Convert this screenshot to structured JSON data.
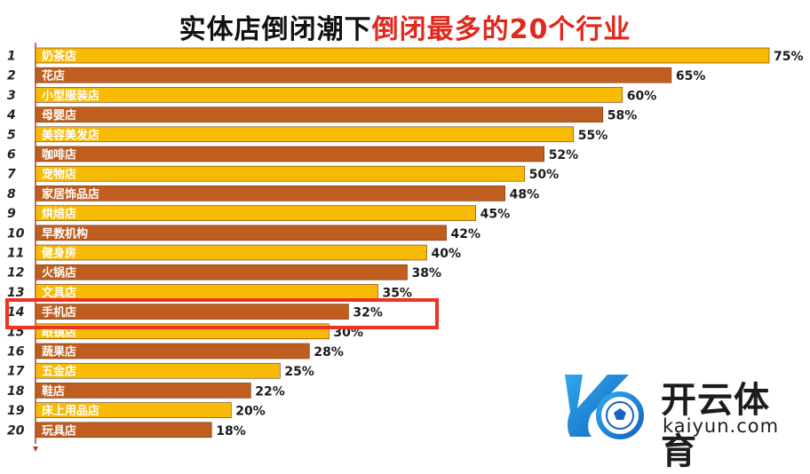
{
  "title": {
    "main": "实体店倒闭潮下",
    "highlight": "倒闭最多的20个行业"
  },
  "colors": {
    "bar_odd": "#f8bb05",
    "bar_even": "#c05e1f",
    "highlight_box": "#ee3322",
    "title_highlight": "#e0281c",
    "axis": "#c0392b"
  },
  "chart_data": {
    "type": "bar",
    "orientation": "horizontal",
    "ranks": [
      "1",
      "2",
      "3",
      "4",
      "5",
      "6",
      "7",
      "8",
      "9",
      "10",
      "11",
      "12",
      "13",
      "14",
      "15",
      "16",
      "17",
      "18",
      "19",
      "20"
    ],
    "categories": [
      "奶茶店",
      "花店",
      "小型服装店",
      "母婴店",
      "美容美发店",
      "咖啡店",
      "宠物店",
      "家居饰品店",
      "烘焙店",
      "早教机构",
      "健身房",
      "火锅店",
      "文具店",
      "手机店",
      "眼镜店",
      "蔬果店",
      "五金店",
      "鞋店",
      "床上用品店",
      "玩具店"
    ],
    "values": [
      75,
      65,
      60,
      58,
      55,
      52,
      50,
      48,
      45,
      42,
      40,
      38,
      35,
      32,
      30,
      28,
      25,
      22,
      20,
      18
    ],
    "value_labels": [
      "75%",
      "65%",
      "60%",
      "58%",
      "55%",
      "52%",
      "50%",
      "48%",
      "45%",
      "42%",
      "40%",
      "38%",
      "35%",
      "32%",
      "30%",
      "28%",
      "25%",
      "22%",
      "20%",
      "18%"
    ],
    "xlim": [
      0,
      75
    ],
    "highlighted_category": "手机店",
    "grid": false
  },
  "logo": {
    "cn": "开云体育",
    "en": "kaiyun.com"
  }
}
